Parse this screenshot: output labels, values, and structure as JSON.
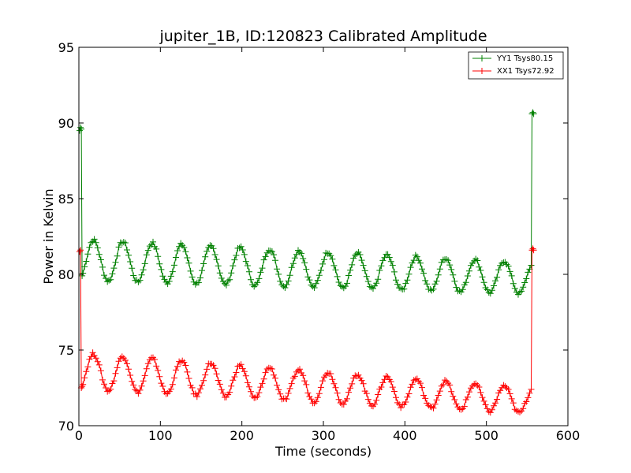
{
  "chart_data": {
    "type": "line",
    "title": "jupiter_1B, ID:120823 Calibrated Amplitude",
    "xlabel": "Time (seconds)",
    "ylabel": "Power in Kelvin",
    "xlim": [
      0,
      600
    ],
    "ylim": [
      70,
      95
    ],
    "xticks": [
      0,
      100,
      200,
      300,
      400,
      500,
      600
    ],
    "yticks": [
      70,
      75,
      80,
      85,
      90,
      95
    ],
    "grid": false,
    "legend_position": "top-right",
    "marker": "+",
    "series": [
      {
        "name": "YY1 Tsys80.15",
        "color": "#008000",
        "start_points": [
          [
            1,
            89.5
          ],
          [
            2,
            89.7
          ],
          [
            3,
            89.6
          ],
          [
            4,
            79.9
          ]
        ],
        "end_points": [
          [
            555,
            80.6
          ],
          [
            556,
            90.6
          ],
          [
            557,
            90.7
          ],
          [
            558,
            90.6
          ]
        ],
        "oscillation": {
          "x_start": 5,
          "x_end": 554,
          "step": 2,
          "period": 36,
          "phase_x": 18,
          "mean_start": 80.95,
          "mean_end": 79.75,
          "amp_start": 1.35,
          "amp_end": 1.05
        }
      },
      {
        "name": "XX1 Tsys72.92",
        "color": "#ff0000",
        "start_points": [
          [
            1,
            81.5
          ],
          [
            2,
            81.6
          ],
          [
            3,
            72.5
          ],
          [
            4,
            72.6
          ]
        ],
        "end_points": [
          [
            555,
            72.4
          ],
          [
            556,
            81.6
          ],
          [
            557,
            81.7
          ],
          [
            558,
            81.6
          ]
        ],
        "oscillation": {
          "x_start": 5,
          "x_end": 554,
          "step": 2,
          "period": 36,
          "phase_x": 18,
          "mean_start": 73.6,
          "mean_end": 71.65,
          "amp_start": 1.2,
          "amp_end": 0.85
        }
      }
    ]
  }
}
